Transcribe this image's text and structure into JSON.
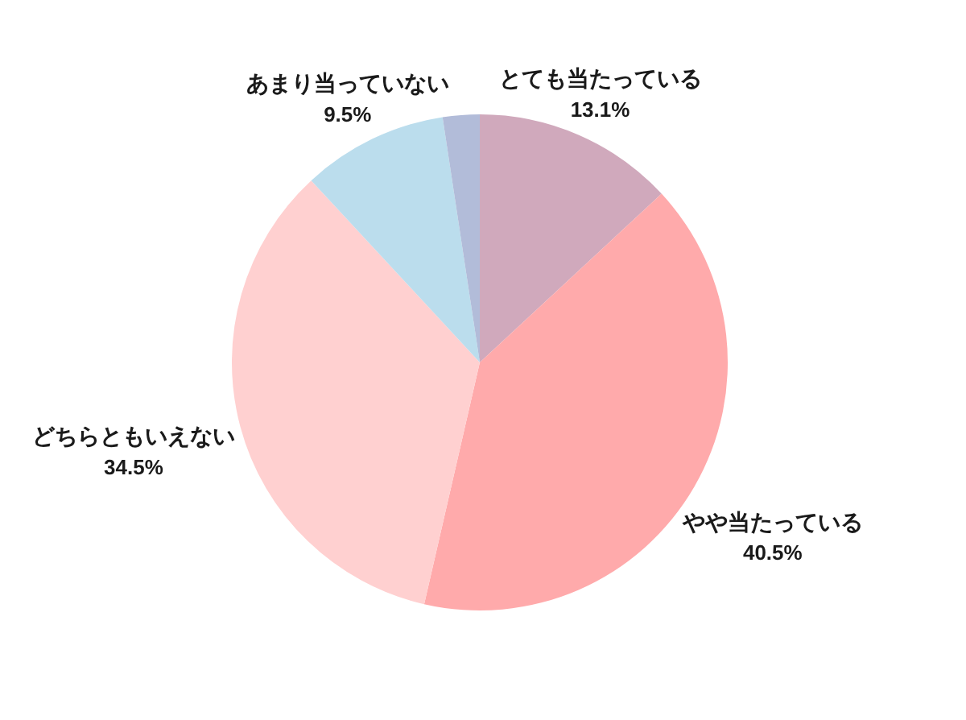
{
  "chart_data": {
    "type": "pie",
    "categories": [
      "とても当たっている",
      "やや当たっている",
      "どちらともいえない",
      "あまり当っていない",
      null
    ],
    "values": [
      13.1,
      40.5,
      34.5,
      9.5,
      2.4
    ],
    "value_labels": [
      "13.1%",
      "40.5%",
      "34.5%",
      "9.5%",
      null
    ],
    "colors": [
      "#d0a9bc",
      "#ffaaab",
      "#ffd0d0",
      "#bbdded",
      "#b2bcd9"
    ],
    "legend": false
  }
}
